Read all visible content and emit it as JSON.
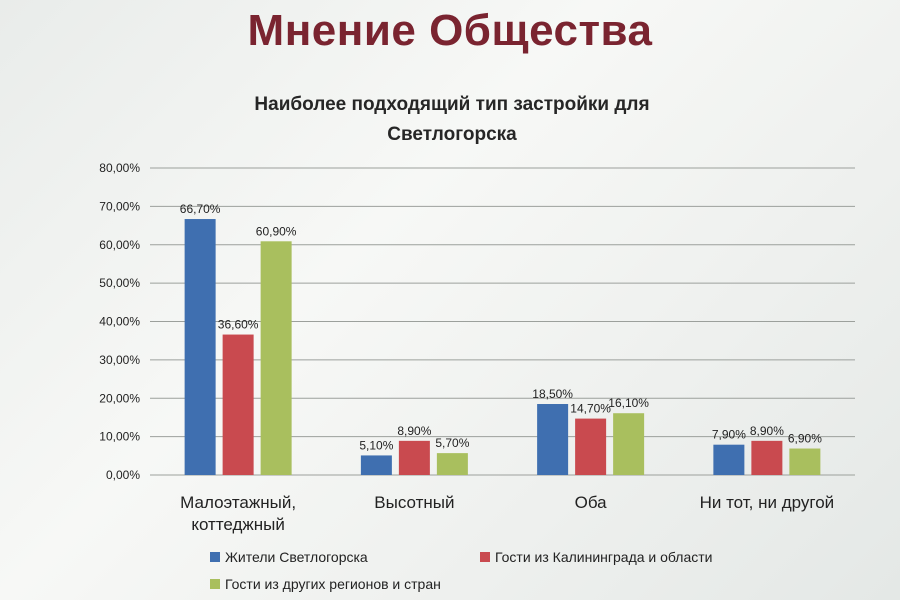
{
  "slide": {
    "title": "Мнение Общества"
  },
  "chart_data": {
    "type": "bar",
    "title_lines": [
      "Наиболее подходящий  тип застройки для",
      "Светлогорска"
    ],
    "categories": [
      [
        "Малоэтажный,",
        "коттеджный"
      ],
      [
        "Высотный"
      ],
      [
        "Оба"
      ],
      [
        "Ни тот, ни другой"
      ]
    ],
    "series": [
      {
        "name": "Жители Светлогорска",
        "color": "#3f6fb0",
        "values": [
          66.7,
          5.1,
          18.5,
          7.9
        ],
        "labels": [
          "66,70%",
          "5,10%",
          "18,50%",
          "7,90%"
        ]
      },
      {
        "name": "Гости из Калининграда и области",
        "color": "#c94a4f",
        "values": [
          36.6,
          8.9,
          14.7,
          8.9
        ],
        "labels": [
          "36,60%",
          "8,90%",
          "14,70%",
          "8,90%"
        ]
      },
      {
        "name": "Гости из других регионов и стран",
        "color": "#a9bf5e",
        "values": [
          60.9,
          5.7,
          16.1,
          6.9
        ],
        "labels": [
          "60,90%",
          "5,70%",
          "16,10%",
          "6,90%"
        ]
      }
    ],
    "ylim": [
      0,
      80
    ],
    "yticks": [
      0,
      10,
      20,
      30,
      40,
      50,
      60,
      70,
      80
    ],
    "ytick_labels": [
      "0,00%",
      "10,00%",
      "20,00%",
      "30,00%",
      "40,00%",
      "50,00%",
      "60,00%",
      "70,00%",
      "80,00%"
    ],
    "grid": true,
    "legend_position": "bottom"
  }
}
